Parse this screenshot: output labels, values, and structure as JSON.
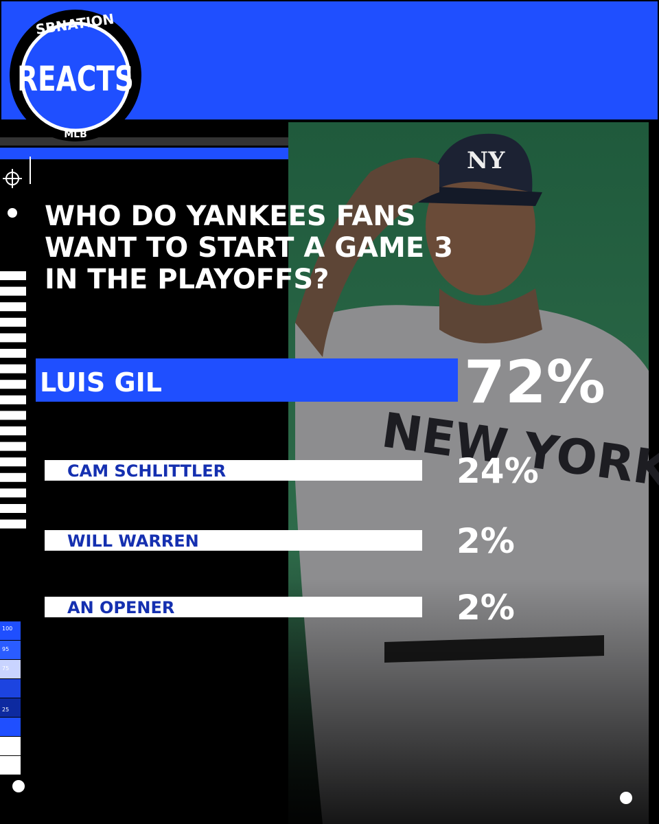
{
  "logo": {
    "top": "SBNATION",
    "main": "REACTS",
    "bottom": "MLB"
  },
  "question": [
    "WHO DO YANKEES FANS",
    "WANT TO START A GAME 3",
    "IN THE PLAYOFFS?"
  ],
  "options": [
    {
      "name": "LUIS GIL",
      "percent": "72%"
    },
    {
      "name": "CAM SCHLITTLER",
      "percent": "24%"
    },
    {
      "name": "WILL WARREN",
      "percent": "2%"
    },
    {
      "name": "AN OPENER",
      "percent": "2%"
    }
  ],
  "scale_labels": [
    "100",
    "95",
    "75",
    "25"
  ]
}
